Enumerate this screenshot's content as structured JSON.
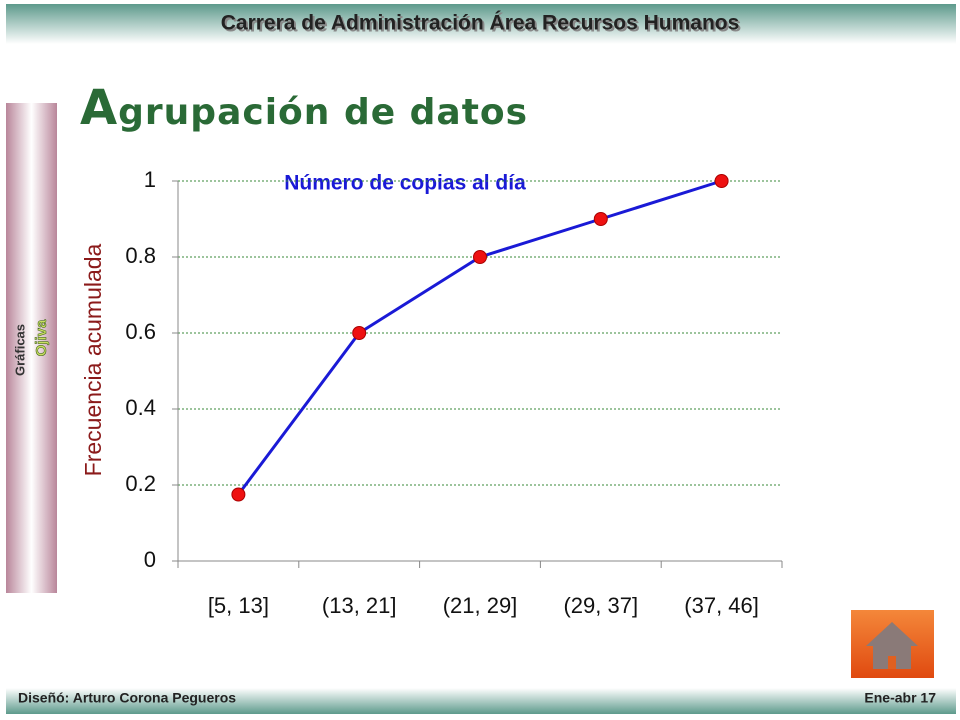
{
  "header": {
    "title": "Carrera de Administración Área Recursos Humanos"
  },
  "slide_title": "Agrupación de datos",
  "sidebar": {
    "section": "Gráficas",
    "topic": "Ojiva"
  },
  "footer": {
    "author": "Diseñó: Arturo Corona Pegueros",
    "date": "Ene-abr 17"
  },
  "chart_data": {
    "type": "line",
    "title": "Número de copias al día",
    "y_label": "Frecuencia acumulada",
    "categories": [
      "[5, 13]",
      "(13, 21]",
      "(21, 29]",
      "(29, 37]",
      "(37, 46]"
    ],
    "values": [
      0.175,
      0.6,
      0.8,
      0.9,
      1
    ],
    "color": "#1a1ad6",
    "marker_color": "#ee1111",
    "ylim": [
      0,
      1
    ],
    "yticks": [
      0,
      0.2,
      0.4,
      0.6,
      0.8,
      1
    ],
    "grid": true
  }
}
